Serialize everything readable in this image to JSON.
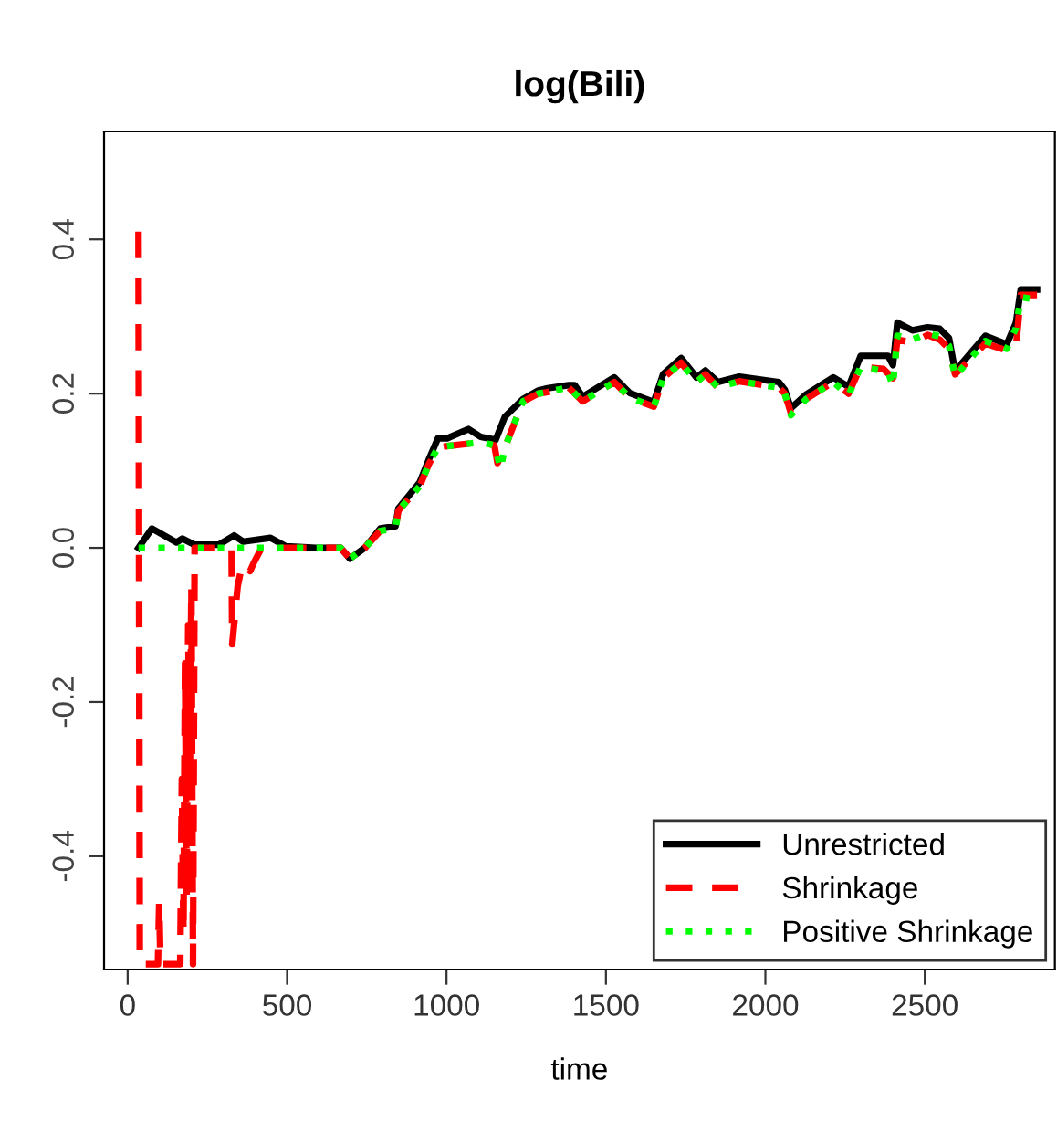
{
  "chart_data": {
    "type": "line",
    "title": "log(Bili)",
    "xlabel": "time",
    "xlim": [
      -74,
      2908
    ],
    "ylim": [
      -0.547,
      0.54
    ],
    "xticks": [
      0,
      500,
      1000,
      1500,
      2000,
      2500
    ],
    "yticks": [
      {
        "value": -0.4,
        "label": "-0.4"
      },
      {
        "value": -0.2,
        "label": "-0.2"
      },
      {
        "value": 0,
        "label": "0.0"
      },
      {
        "value": 0.2,
        "label": "0.2"
      },
      {
        "value": 0.4,
        "label": "0.4"
      }
    ],
    "grid": false,
    "legend": "bottom right",
    "marker": "none",
    "series": [
      {
        "name": "Unrestricted",
        "color": "#000000",
        "line_style": "solid",
        "x": [
          34,
          76,
          153,
          172,
          210,
          286,
          334,
          362,
          448,
          496,
          591,
          668,
          697,
          744,
          792,
          840,
          849,
          916,
          944,
          973,
          1002,
          1069,
          1107,
          1154,
          1183,
          1240,
          1288,
          1317,
          1383,
          1402,
          1427,
          1526,
          1574,
          1650,
          1679,
          1736,
          1784,
          1812,
          1851,
          1918,
          2042,
          2061,
          2080,
          2128,
          2213,
          2261,
          2299,
          2385,
          2400,
          2414,
          2461,
          2509,
          2547,
          2576,
          2595,
          2690,
          2757,
          2786,
          2801,
          2852
        ],
        "values": [
          0,
          0.025,
          0.007,
          0.012,
          0.004,
          0.004,
          0.016,
          0.008,
          0.013,
          0.002,
          0,
          0,
          -0.014,
          0,
          0.025,
          0.028,
          0.051,
          0.085,
          0.114,
          0.142,
          0.142,
          0.154,
          0.144,
          0.14,
          0.17,
          0.193,
          0.204,
          0.207,
          0.211,
          0.211,
          0.196,
          0.221,
          0.201,
          0.189,
          0.225,
          0.246,
          0.221,
          0.23,
          0.215,
          0.222,
          0.215,
          0.205,
          0.181,
          0.199,
          0.221,
          0.209,
          0.249,
          0.249,
          0.237,
          0.292,
          0.282,
          0.286,
          0.284,
          0.272,
          0.229,
          0.275,
          0.264,
          0.292,
          0.335,
          0.335
        ]
      },
      {
        "name": "Shrinkage",
        "color": "#ff0000",
        "line_style": "dashed",
        "x": [
          34,
          38,
          95,
          99,
          103,
          165,
          170,
          175,
          180,
          185,
          190,
          195,
          200,
          205,
          210,
          250,
          300,
          326,
          328,
          345,
          360,
          384,
          395,
          420,
          600,
          668,
          697,
          744,
          792,
          840,
          849,
          916,
          944,
          973,
          1002,
          1069,
          1107,
          1150,
          1160,
          1183,
          1240,
          1288,
          1317,
          1383,
          1427,
          1526,
          1574,
          1650,
          1679,
          1736,
          1784,
          1812,
          1851,
          1918,
          2042,
          2061,
          2080,
          2128,
          2213,
          2261,
          2299,
          2370,
          2400,
          2414,
          2461,
          2509,
          2547,
          2576,
          2595,
          2690,
          2757,
          2786,
          2801,
          2852
        ],
        "values": [
          0.41,
          -0.54,
          -0.54,
          -0.46,
          -0.54,
          -0.54,
          -0.3,
          -0.5,
          -0.15,
          -0.45,
          -0.1,
          -0.3,
          -0.05,
          -0.54,
          0,
          0,
          0,
          0,
          -0.125,
          -0.05,
          -0.02,
          -0.03,
          -0.02,
          0,
          0,
          0,
          -0.014,
          0,
          0.022,
          0.025,
          0.048,
          0.08,
          0.108,
          0.13,
          0.132,
          0.135,
          0.137,
          0.133,
          0.11,
          0.13,
          0.19,
          0.2,
          0.202,
          0.208,
          0.19,
          0.215,
          0.195,
          0.183,
          0.22,
          0.24,
          0.215,
          0.225,
          0.208,
          0.216,
          0.208,
          0.2,
          0.175,
          0.193,
          0.215,
          0.2,
          0.235,
          0.232,
          0.22,
          0.27,
          0.266,
          0.276,
          0.27,
          0.258,
          0.225,
          0.265,
          0.256,
          0.26,
          0.328,
          0.328
        ]
      },
      {
        "name": "Positive Shrinkage",
        "color": "#00ff00",
        "line_style": "dotted",
        "x": [
          34,
          200,
          400,
          600,
          668,
          697,
          744,
          792,
          840,
          849,
          916,
          944,
          973,
          1002,
          1069,
          1107,
          1150,
          1170,
          1183,
          1240,
          1288,
          1317,
          1383,
          1427,
          1526,
          1574,
          1650,
          1679,
          1736,
          1784,
          1812,
          1851,
          1918,
          2042,
          2061,
          2080,
          2128,
          2213,
          2261,
          2299,
          2385,
          2400,
          2414,
          2461,
          2509,
          2547,
          2576,
          2595,
          2690,
          2757,
          2786,
          2801,
          2852
        ],
        "values": [
          0,
          0,
          0,
          0,
          0,
          -0.014,
          0,
          0.022,
          0.025,
          0.048,
          0.08,
          0.108,
          0.13,
          0.132,
          0.135,
          0.137,
          0.133,
          0.103,
          0.13,
          0.19,
          0.2,
          0.202,
          0.208,
          0.19,
          0.215,
          0.195,
          0.183,
          0.22,
          0.24,
          0.215,
          0.225,
          0.208,
          0.216,
          0.208,
          0.2,
          0.172,
          0.193,
          0.215,
          0.198,
          0.235,
          0.228,
          0.21,
          0.275,
          0.27,
          0.278,
          0.274,
          0.262,
          0.222,
          0.268,
          0.258,
          0.285,
          0.325,
          0.322
        ]
      }
    ]
  }
}
